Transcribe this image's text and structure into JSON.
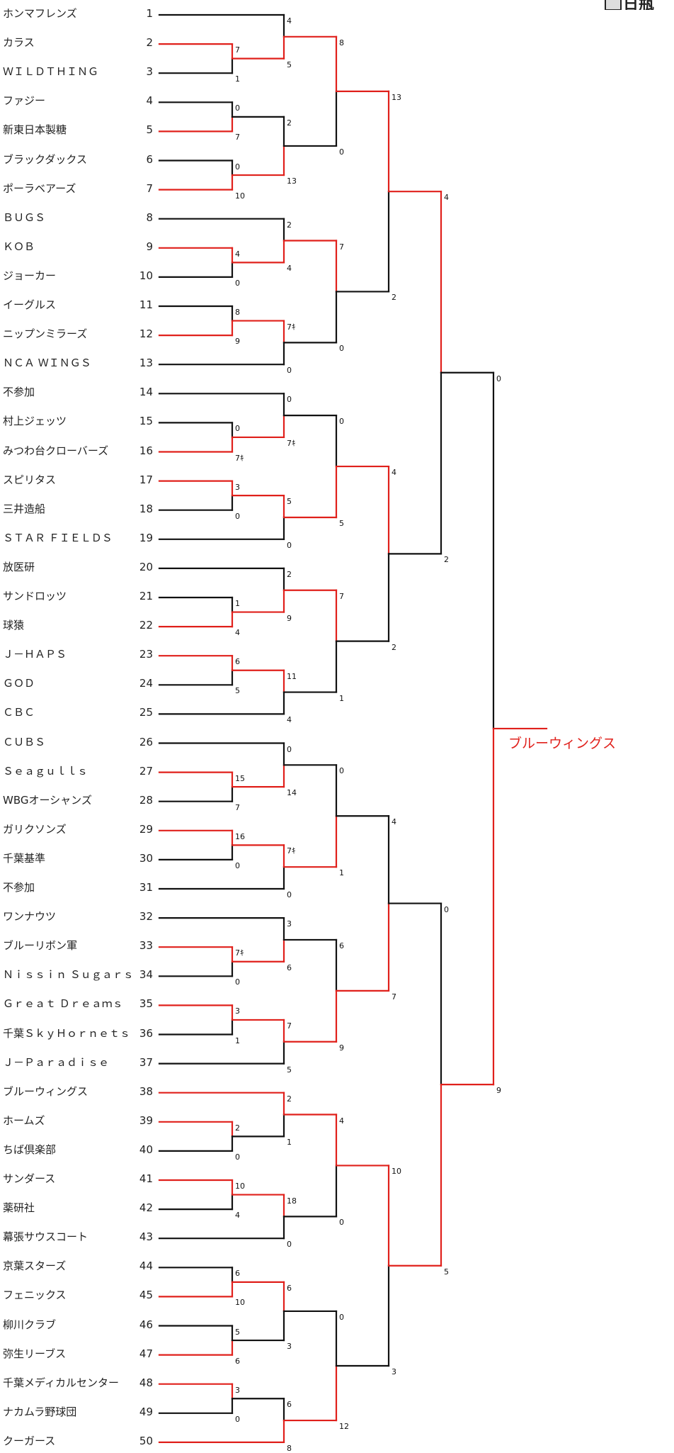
{
  "tournament": {
    "teams": [
      {
        "seed": 1,
        "name": "ホンマフレンズ"
      },
      {
        "seed": 2,
        "name": "カラス"
      },
      {
        "seed": 3,
        "name": "ＷＩＬＤＴＨＩＮＧ"
      },
      {
        "seed": 4,
        "name": "ファジー"
      },
      {
        "seed": 5,
        "name": "新東日本製糖"
      },
      {
        "seed": 6,
        "name": "ブラックダックス"
      },
      {
        "seed": 7,
        "name": "ポーラベアーズ"
      },
      {
        "seed": 8,
        "name": "ＢＵＧＳ"
      },
      {
        "seed": 9,
        "name": "ＫＯＢ"
      },
      {
        "seed": 10,
        "name": "ジョーカー"
      },
      {
        "seed": 11,
        "name": "イーグルス"
      },
      {
        "seed": 12,
        "name": "ニップンミラーズ"
      },
      {
        "seed": 13,
        "name": "ＮＣＡ ＷＩＮＧＳ"
      },
      {
        "seed": 14,
        "name": "不参加"
      },
      {
        "seed": 15,
        "name": "村上ジェッツ"
      },
      {
        "seed": 16,
        "name": "みつわ台クローバーズ"
      },
      {
        "seed": 17,
        "name": "スピリタス"
      },
      {
        "seed": 18,
        "name": "三井造船"
      },
      {
        "seed": 19,
        "name": "ＳＴＡＲ ＦＩＥＬＤＳ"
      },
      {
        "seed": 20,
        "name": "放医研"
      },
      {
        "seed": 21,
        "name": "サンドロッツ"
      },
      {
        "seed": 22,
        "name": "球猿"
      },
      {
        "seed": 23,
        "name": "Ｊ－ＨＡＰＳ"
      },
      {
        "seed": 24,
        "name": "ＧＯＤ"
      },
      {
        "seed": 25,
        "name": "ＣＢＣ"
      },
      {
        "seed": 26,
        "name": "ＣＵＢＳ"
      },
      {
        "seed": 27,
        "name": "Ｓｅａｇｕｌｌｓ"
      },
      {
        "seed": 28,
        "name": "WBGオーシャンズ"
      },
      {
        "seed": 29,
        "name": "ガリクソンズ"
      },
      {
        "seed": 30,
        "name": "千葉基準"
      },
      {
        "seed": 31,
        "name": "不参加"
      },
      {
        "seed": 32,
        "name": "ワンナウツ"
      },
      {
        "seed": 33,
        "name": "ブルーリボン軍"
      },
      {
        "seed": 34,
        "name": "Ｎｉｓｓｉｎ Ｓｕｇａｒｓ"
      },
      {
        "seed": 35,
        "name": "Ｇｒｅａｔ Ｄｒｅａｍｓ"
      },
      {
        "seed": 36,
        "name": "千葉ＳｋｙＨｏｒｎｅｔｓ"
      },
      {
        "seed": 37,
        "name": "Ｊ－Ｐａｒａｄｉｓｅ"
      },
      {
        "seed": 38,
        "name": "ブルーウィングス"
      },
      {
        "seed": 39,
        "name": "ホームズ"
      },
      {
        "seed": 40,
        "name": "ちば倶楽部"
      },
      {
        "seed": 41,
        "name": "サンダース"
      },
      {
        "seed": 42,
        "name": "薬研社"
      },
      {
        "seed": 43,
        "name": "幕張サウスコート"
      },
      {
        "seed": 44,
        "name": "京葉スターズ"
      },
      {
        "seed": 45,
        "name": "フェニックス"
      },
      {
        "seed": 46,
        "name": "柳川クラブ"
      },
      {
        "seed": 47,
        "name": "弥生リーブス"
      },
      {
        "seed": 48,
        "name": "千葉メディカルセンター"
      },
      {
        "seed": 49,
        "name": "ナカムラ野球団"
      },
      {
        "seed": 50,
        "name": "クーガース"
      }
    ],
    "matches": [
      {
        "id": "a1",
        "a": 2,
        "b": 3,
        "sa": "7",
        "sb": "1",
        "winner": "a"
      },
      {
        "id": "a2",
        "a": 4,
        "b": 5,
        "sa": "0",
        "sb": "7",
        "winner": "b"
      },
      {
        "id": "a3",
        "a": 6,
        "b": 7,
        "sa": "0",
        "sb": "10",
        "winner": "b"
      },
      {
        "id": "a4",
        "a": 9,
        "b": 10,
        "sa": "4",
        "sb": "0",
        "winner": "a"
      },
      {
        "id": "a5",
        "a": 11,
        "b": 12,
        "sa": "8",
        "sb": "9",
        "winner": "b"
      },
      {
        "id": "a6",
        "a": 15,
        "b": 16,
        "sa": "0",
        "sb": "7ｷ",
        "winner": "b"
      },
      {
        "id": "a7",
        "a": 17,
        "b": 18,
        "sa": "3",
        "sb": "0",
        "winner": "a"
      },
      {
        "id": "a8",
        "a": 21,
        "b": 22,
        "sa": "1",
        "sb": "4",
        "winner": "b"
      },
      {
        "id": "a9",
        "a": 23,
        "b": 24,
        "sa": "6",
        "sb": "5",
        "winner": "a"
      },
      {
        "id": "a10",
        "a": 27,
        "b": 28,
        "sa": "15",
        "sb": "7",
        "winner": "a"
      },
      {
        "id": "a11",
        "a": 29,
        "b": 30,
        "sa": "16",
        "sb": "0",
        "winner": "a"
      },
      {
        "id": "a12",
        "a": 33,
        "b": 34,
        "sa": "7ｷ",
        "sb": "0",
        "winner": "a"
      },
      {
        "id": "a13",
        "a": 35,
        "b": 36,
        "sa": "3",
        "sb": "1",
        "winner": "a"
      },
      {
        "id": "a14",
        "a": 39,
        "b": 40,
        "sa": "2",
        "sb": "0",
        "winner": "a"
      },
      {
        "id": "a15",
        "a": 41,
        "b": 42,
        "sa": "10",
        "sb": "4",
        "winner": "a"
      },
      {
        "id": "a16",
        "a": 44,
        "b": 45,
        "sa": "6",
        "sb": "10",
        "winner": "b"
      },
      {
        "id": "a17",
        "a": 46,
        "b": 47,
        "sa": "5",
        "sb": "6",
        "winner": "b"
      },
      {
        "id": "a18",
        "a": 48,
        "b": 49,
        "sa": "3",
        "sb": "0",
        "winner": "a"
      },
      {
        "id": "b1",
        "a": 1,
        "b": "a1",
        "sa": "4",
        "sb": "5",
        "winner": "b"
      },
      {
        "id": "b2",
        "a": "a2",
        "b": "a3",
        "sa": "2",
        "sb": "13",
        "winner": "b"
      },
      {
        "id": "b3",
        "a": 8,
        "b": "a4",
        "sa": "2",
        "sb": "4",
        "winner": "b"
      },
      {
        "id": "b4",
        "a": "a5",
        "b": 13,
        "sa": "7ｷ",
        "sb": "0",
        "winner": "a"
      },
      {
        "id": "b5",
        "a": 14,
        "b": "a6",
        "sa": "0",
        "sb": "7ｷ",
        "winner": "b"
      },
      {
        "id": "b6",
        "a": "a7",
        "b": 19,
        "sa": "5",
        "sb": "0",
        "winner": "a"
      },
      {
        "id": "b7",
        "a": 20,
        "b": "a8",
        "sa": "2",
        "sb": "9",
        "winner": "b"
      },
      {
        "id": "b8",
        "a": "a9",
        "b": 25,
        "sa": "11",
        "sb": "4",
        "winner": "a"
      },
      {
        "id": "b9",
        "a": 26,
        "b": "a10",
        "sa": "0",
        "sb": "14",
        "winner": "b"
      },
      {
        "id": "b10",
        "a": "a11",
        "b": 31,
        "sa": "7ｷ",
        "sb": "0",
        "winner": "a"
      },
      {
        "id": "b11",
        "a": 32,
        "b": "a12",
        "sa": "3",
        "sb": "6",
        "winner": "b"
      },
      {
        "id": "b12",
        "a": "a13",
        "b": 37,
        "sa": "7",
        "sb": "5",
        "winner": "a"
      },
      {
        "id": "b13",
        "a": 38,
        "b": "a14",
        "sa": "2",
        "sb": "1",
        "winner": "a"
      },
      {
        "id": "b14",
        "a": "a15",
        "b": 43,
        "sa": "18",
        "sb": "0",
        "winner": "a"
      },
      {
        "id": "b15",
        "a": "a16",
        "b": "a17",
        "sa": "6",
        "sb": "3",
        "winner": "a"
      },
      {
        "id": "b16",
        "a": "a18",
        "b": 50,
        "sa": "6",
        "sb": "8",
        "winner": "b"
      },
      {
        "id": "c1",
        "a": "b1",
        "b": "b2",
        "sa": "8",
        "sb": "0",
        "winner": "a"
      },
      {
        "id": "c2",
        "a": "b3",
        "b": "b4",
        "sa": "7",
        "sb": "0",
        "winner": "a"
      },
      {
        "id": "c3",
        "a": "b5",
        "b": "b6",
        "sa": "0",
        "sb": "5",
        "winner": "b"
      },
      {
        "id": "c4",
        "a": "b7",
        "b": "b8",
        "sa": "7",
        "sb": "1",
        "winner": "a"
      },
      {
        "id": "c5",
        "a": "b9",
        "b": "b10",
        "sa": "0",
        "sb": "1",
        "winner": "b"
      },
      {
        "id": "c6",
        "a": "b11",
        "b": "b12",
        "sa": "6",
        "sb": "9",
        "winner": "b"
      },
      {
        "id": "c7",
        "a": "b13",
        "b": "b14",
        "sa": "4",
        "sb": "0",
        "winner": "a"
      },
      {
        "id": "c8",
        "a": "b15",
        "b": "b16",
        "sa": "0",
        "sb": "12",
        "winner": "b"
      },
      {
        "id": "d1",
        "a": "c1",
        "b": "c2",
        "sa": "13",
        "sb": "2",
        "winner": "a"
      },
      {
        "id": "d2",
        "a": "c3",
        "b": "c4",
        "sa": "4",
        "sb": "2",
        "winner": "a"
      },
      {
        "id": "d3",
        "a": "c5",
        "b": "c6",
        "sa": "4",
        "sb": "7",
        "winner": "b"
      },
      {
        "id": "d4",
        "a": "c7",
        "b": "c8",
        "sa": "10",
        "sb": "3",
        "winner": "a"
      },
      {
        "id": "e1",
        "a": "d1",
        "b": "d2",
        "sa": "4",
        "sb": "2",
        "winner": "a"
      },
      {
        "id": "e2",
        "a": "d3",
        "b": "d4",
        "sa": "0",
        "sb": "5",
        "winner": "b"
      },
      {
        "id": "f1",
        "a": "e1",
        "b": "e2",
        "sa": "0",
        "sb": "9",
        "winner": "b"
      }
    ],
    "champion": "ブルーウィングス",
    "corner_label": "日瓶",
    "colors": {
      "win": "#e0201b",
      "line": "#111111"
    }
  }
}
